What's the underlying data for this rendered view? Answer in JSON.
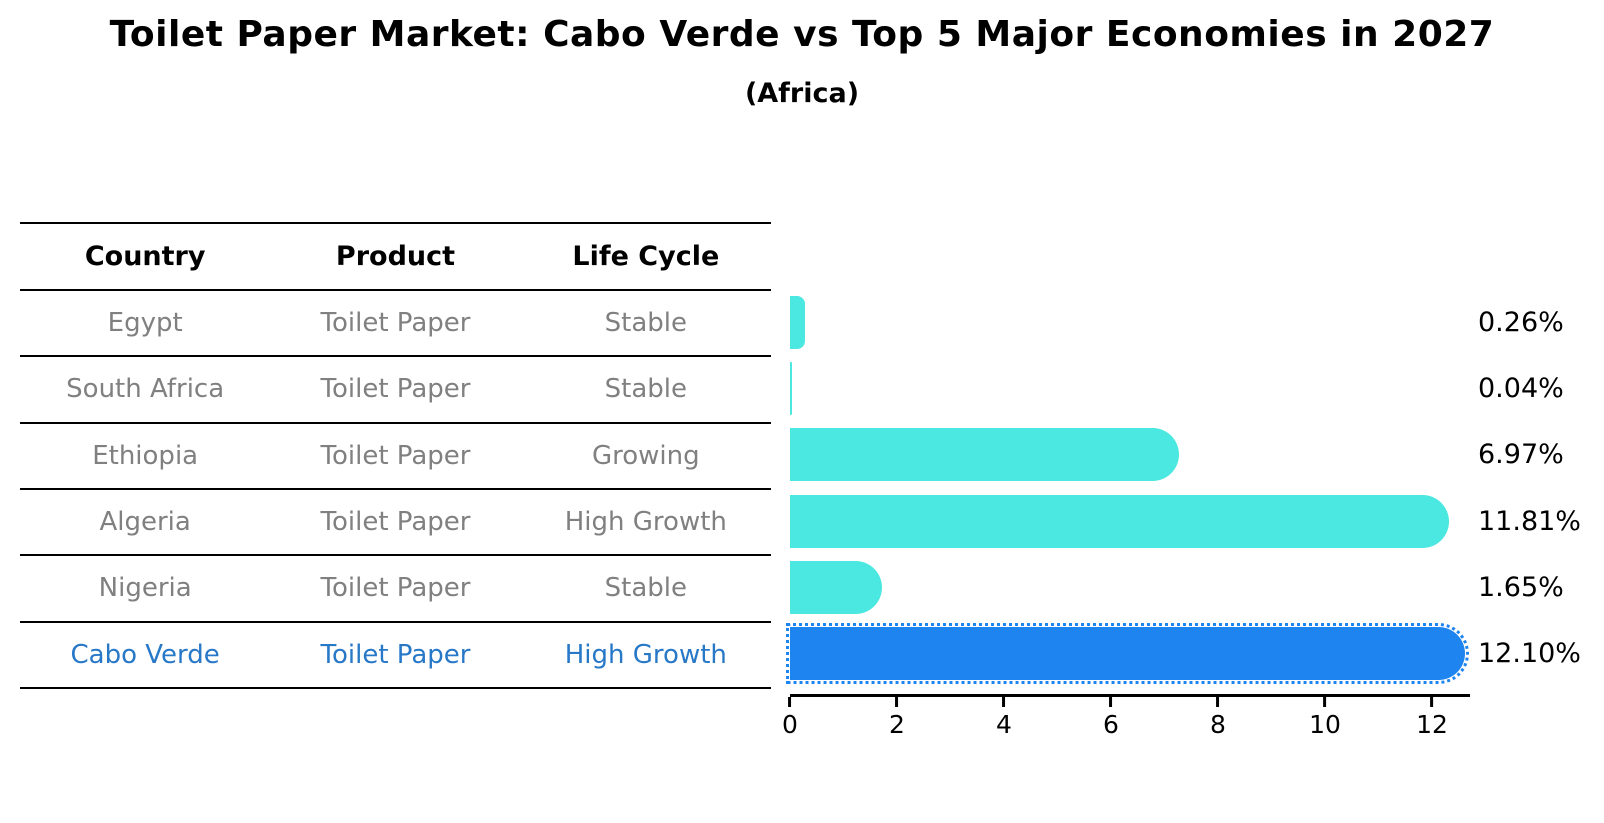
{
  "title": "Toilet Paper Market: Cabo Verde vs Top 5 Major Economies in 2027",
  "subtitle": "(Africa)",
  "table": {
    "headers": [
      "Country",
      "Product",
      "Life Cycle"
    ],
    "rows": [
      {
        "country": "Egypt",
        "product": "Toilet Paper",
        "life_cycle": "Stable",
        "highlight": false
      },
      {
        "country": "South Africa",
        "product": "Toilet Paper",
        "life_cycle": "Stable",
        "highlight": false
      },
      {
        "country": "Ethiopia",
        "product": "Toilet Paper",
        "life_cycle": "Growing",
        "highlight": false
      },
      {
        "country": "Algeria",
        "product": "Toilet Paper",
        "life_cycle": "High Growth",
        "highlight": false
      },
      {
        "country": "Nigeria",
        "product": "Toilet Paper",
        "life_cycle": "Stable",
        "highlight": false
      },
      {
        "country": "Cabo Verde",
        "product": "Toilet Paper",
        "life_cycle": "High Growth",
        "highlight": true
      }
    ]
  },
  "chart_data": {
    "type": "bar",
    "orientation": "horizontal",
    "title": "Toilet Paper Market: Cabo Verde vs Top 5 Major Economies in 2027",
    "subtitle": "(Africa)",
    "categories": [
      "Egypt",
      "South Africa",
      "Ethiopia",
      "Algeria",
      "Nigeria",
      "Cabo Verde"
    ],
    "values": [
      0.26,
      0.04,
      6.97,
      11.81,
      1.65,
      12.1
    ],
    "value_labels": [
      "0.26%",
      "0.04%",
      "6.97%",
      "11.81%",
      "1.65%",
      "12.10%"
    ],
    "xlabel": "",
    "ylabel": "",
    "xticks": [
      0,
      2,
      4,
      6,
      8,
      10,
      12
    ],
    "xlim": [
      0,
      12.15
    ],
    "grid": false,
    "highlight_index": 5
  },
  "colors": {
    "bar": "#4AE8E0",
    "highlight_bar": "#1E84F0",
    "highlight_text": "#2878C8",
    "table_text": "#808080",
    "heading_text": "#000000"
  }
}
